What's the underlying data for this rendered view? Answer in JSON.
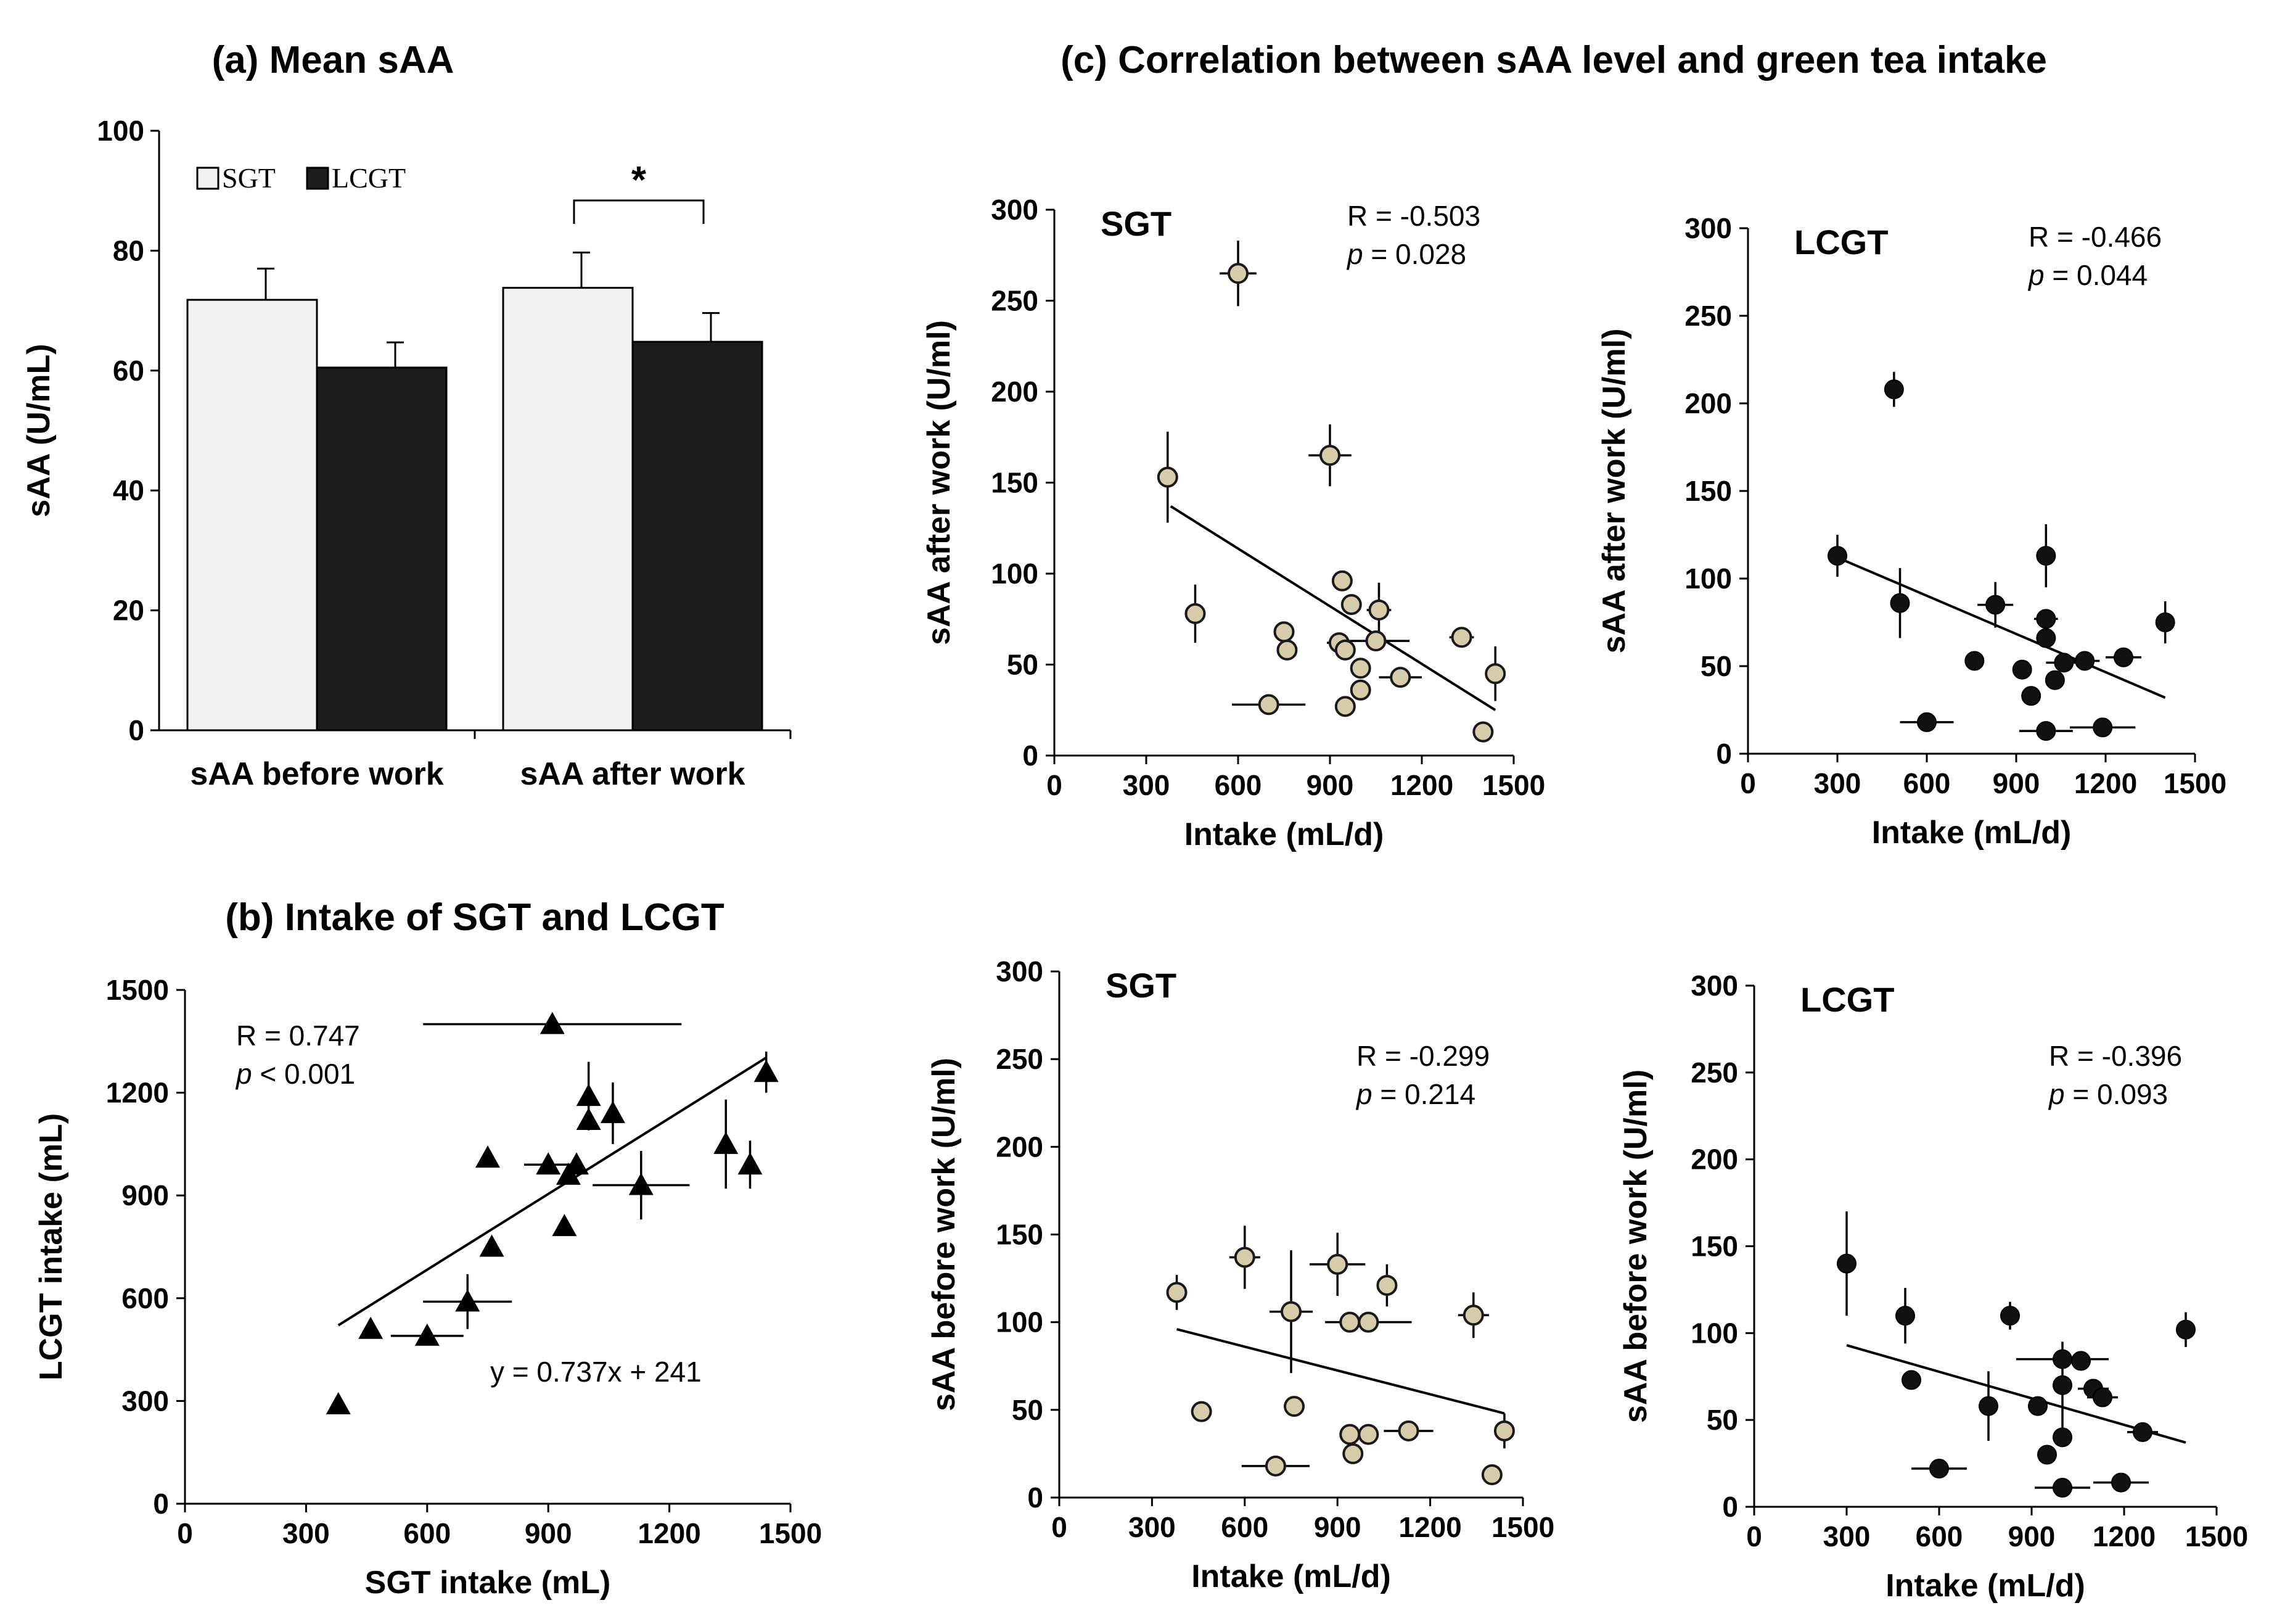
{
  "figure": {
    "titles": {
      "a": "(a) Mean sAA",
      "b": "(b) Intake of SGT and LCGT",
      "c": "(c) Correlation between sAA level and green tea intake"
    }
  },
  "chart_data": [
    {
      "id": "a",
      "type": "bar",
      "title": "(a) Mean sAA",
      "ylabel": "sAA (U/mL)",
      "ylim": [
        0,
        100
      ],
      "yticks": [
        0,
        20,
        40,
        60,
        80,
        100
      ],
      "categories": [
        "sAA before work",
        "sAA after work"
      ],
      "series": [
        {
          "name": "SGT",
          "color": "#f2f2f2",
          "values": [
            71.8,
            73.8
          ],
          "errors": [
            5.2,
            5.9
          ]
        },
        {
          "name": "LCGT",
          "color": "#1c1c1c",
          "values": [
            60.5,
            64.8
          ],
          "errors": [
            4.2,
            4.8
          ]
        }
      ],
      "legend": [
        "SGT",
        "LCGT"
      ],
      "annotation": "*"
    },
    {
      "id": "b",
      "type": "scatter",
      "title": "(b) Intake of SGT and LCGT",
      "xlabel": "SGT intake (mL)",
      "ylabel": "LCGT intake (mL)",
      "xlim": [
        0,
        1500
      ],
      "ylim": [
        0,
        1500
      ],
      "xticks": [
        0,
        300,
        600,
        900,
        1200,
        1500
      ],
      "yticks": [
        0,
        300,
        600,
        900,
        1200,
        1500
      ],
      "marker": "triangle",
      "stats": {
        "r": "R = 0.747",
        "p_label": "p",
        "p_rest": " < 0.001",
        "equation": "y = 0.737x + 241"
      },
      "fit": {
        "slope": 0.737,
        "intercept": 241,
        "x_range": [
          380,
          1440
        ]
      },
      "points": [
        {
          "x": 380,
          "y": 290,
          "ex": 0,
          "ey": 0
        },
        {
          "x": 460,
          "y": 510,
          "ex": 0,
          "ey": 0
        },
        {
          "x": 600,
          "y": 490,
          "ex": 90,
          "ey": 0
        },
        {
          "x": 700,
          "y": 590,
          "ex": 110,
          "ey": 80
        },
        {
          "x": 750,
          "y": 1010,
          "ex": 0,
          "ey": 0
        },
        {
          "x": 760,
          "y": 750,
          "ex": 0,
          "ey": 0
        },
        {
          "x": 910,
          "y": 1400,
          "ex": 320,
          "ey": 0
        },
        {
          "x": 900,
          "y": 990,
          "ex": 60,
          "ey": 0
        },
        {
          "x": 940,
          "y": 810,
          "ex": 0,
          "ey": 0
        },
        {
          "x": 950,
          "y": 960,
          "ex": 0,
          "ey": 0
        },
        {
          "x": 970,
          "y": 990,
          "ex": 0,
          "ey": 0
        },
        {
          "x": 1000,
          "y": 1190,
          "ex": 0,
          "ey": 100
        },
        {
          "x": 1000,
          "y": 1120,
          "ex": 0,
          "ey": 0
        },
        {
          "x": 1060,
          "y": 1140,
          "ex": 0,
          "ey": 90
        },
        {
          "x": 1130,
          "y": 930,
          "ex": 120,
          "ey": 100
        },
        {
          "x": 1340,
          "y": 1050,
          "ex": 0,
          "ey": 130
        },
        {
          "x": 1400,
          "y": 990,
          "ex": 0,
          "ey": 70
        },
        {
          "x": 1440,
          "y": 1260,
          "ex": 0,
          "ey": 60
        }
      ]
    },
    {
      "id": "c1",
      "type": "scatter",
      "subtitle": "SGT",
      "xlabel": "Intake (mL/d)",
      "ylabel": "sAA after work (U/ml)",
      "xlim": [
        0,
        1500
      ],
      "ylim": [
        0,
        300
      ],
      "xticks": [
        0,
        300,
        600,
        900,
        1200,
        1500
      ],
      "yticks": [
        0,
        50,
        100,
        150,
        200,
        250,
        300
      ],
      "marker": "circle-light",
      "stats": {
        "r": "R = -0.503",
        "p_label": "p",
        "p_rest": " = 0.028"
      },
      "fit": {
        "x": [
          380,
          1440
        ],
        "y": [
          137,
          25
        ]
      },
      "points": [
        {
          "x": 600,
          "y": 265,
          "ex": 60,
          "ey": 18
        },
        {
          "x": 370,
          "y": 153,
          "ex": 0,
          "ey": 25
        },
        {
          "x": 900,
          "y": 165,
          "ex": 70,
          "ey": 17
        },
        {
          "x": 460,
          "y": 78,
          "ex": 0,
          "ey": 16
        },
        {
          "x": 750,
          "y": 68,
          "ex": 0,
          "ey": 0
        },
        {
          "x": 760,
          "y": 58,
          "ex": 0,
          "ey": 0
        },
        {
          "x": 700,
          "y": 28,
          "ex": 120,
          "ey": 0
        },
        {
          "x": 940,
          "y": 96,
          "ex": 0,
          "ey": 0
        },
        {
          "x": 970,
          "y": 83,
          "ex": 0,
          "ey": 0
        },
        {
          "x": 1060,
          "y": 80,
          "ex": 40,
          "ey": 15
        },
        {
          "x": 930,
          "y": 62,
          "ex": 40,
          "ey": 0
        },
        {
          "x": 950,
          "y": 58,
          "ex": 0,
          "ey": 0
        },
        {
          "x": 1000,
          "y": 48,
          "ex": 0,
          "ey": 0
        },
        {
          "x": 1000,
          "y": 36,
          "ex": 0,
          "ey": 0
        },
        {
          "x": 950,
          "y": 27,
          "ex": 0,
          "ey": 0
        },
        {
          "x": 1130,
          "y": 43,
          "ex": 70,
          "ey": 0
        },
        {
          "x": 1050,
          "y": 63,
          "ex": 110,
          "ey": 0
        },
        {
          "x": 1330,
          "y": 65,
          "ex": 40,
          "ey": 0
        },
        {
          "x": 1440,
          "y": 45,
          "ex": 0,
          "ey": 15
        },
        {
          "x": 1400,
          "y": 13,
          "ex": 0,
          "ey": 0
        }
      ]
    },
    {
      "id": "c2",
      "type": "scatter",
      "subtitle": "LCGT",
      "xlabel": "Intake (mL/d)",
      "ylabel": "sAA after work (U/ml)",
      "xlim": [
        0,
        1500
      ],
      "ylim": [
        0,
        300
      ],
      "xticks": [
        0,
        300,
        600,
        900,
        1200,
        1500
      ],
      "yticks": [
        0,
        50,
        100,
        150,
        200,
        250,
        300
      ],
      "marker": "circle-dark",
      "stats": {
        "r": "R = -0.466",
        "p_label": "p",
        "p_rest": " = 0.044"
      },
      "fit": {
        "x": [
          300,
          1400
        ],
        "y": [
          112,
          32
        ]
      },
      "points": [
        {
          "x": 490,
          "y": 208,
          "ex": 0,
          "ey": 10
        },
        {
          "x": 300,
          "y": 113,
          "ex": 0,
          "ey": 12
        },
        {
          "x": 510,
          "y": 86,
          "ex": 0,
          "ey": 20
        },
        {
          "x": 600,
          "y": 18,
          "ex": 90,
          "ey": 0
        },
        {
          "x": 760,
          "y": 53,
          "ex": 0,
          "ey": 0
        },
        {
          "x": 830,
          "y": 85,
          "ex": 60,
          "ey": 13
        },
        {
          "x": 920,
          "y": 48,
          "ex": 0,
          "ey": 0
        },
        {
          "x": 950,
          "y": 33,
          "ex": 0,
          "ey": 0
        },
        {
          "x": 1000,
          "y": 113,
          "ex": 0,
          "ey": 18
        },
        {
          "x": 1000,
          "y": 77,
          "ex": 40,
          "ey": 0
        },
        {
          "x": 1000,
          "y": 66,
          "ex": 0,
          "ey": 0
        },
        {
          "x": 1000,
          "y": 13,
          "ex": 90,
          "ey": 0
        },
        {
          "x": 1030,
          "y": 42,
          "ex": 30,
          "ey": 0
        },
        {
          "x": 1060,
          "y": 52,
          "ex": 60,
          "ey": 0
        },
        {
          "x": 1130,
          "y": 53,
          "ex": 50,
          "ey": 0
        },
        {
          "x": 1190,
          "y": 15,
          "ex": 110,
          "ey": 0
        },
        {
          "x": 1260,
          "y": 55,
          "ex": 60,
          "ey": 0
        },
        {
          "x": 1400,
          "y": 75,
          "ex": 0,
          "ey": 12
        }
      ]
    },
    {
      "id": "c3",
      "type": "scatter",
      "subtitle": "SGT",
      "xlabel": "Intake (mL/d)",
      "ylabel": "sAA before work (U/ml)",
      "xlim": [
        0,
        1500
      ],
      "ylim": [
        0,
        300
      ],
      "xticks": [
        0,
        300,
        600,
        900,
        1200,
        1500
      ],
      "yticks": [
        0,
        50,
        100,
        150,
        200,
        250,
        300
      ],
      "marker": "circle-light",
      "stats": {
        "r": "R = -0.299",
        "p_label": "p",
        "p_rest": " = 0.214"
      },
      "fit": {
        "x": [
          380,
          1440
        ],
        "y": [
          96,
          48
        ]
      },
      "points": [
        {
          "x": 380,
          "y": 117,
          "ex": 0,
          "ey": 10
        },
        {
          "x": 600,
          "y": 137,
          "ex": 50,
          "ey": 18
        },
        {
          "x": 460,
          "y": 49,
          "ex": 0,
          "ey": 0
        },
        {
          "x": 700,
          "y": 18,
          "ex": 110,
          "ey": 0
        },
        {
          "x": 750,
          "y": 106,
          "ex": 70,
          "ey": 35
        },
        {
          "x": 760,
          "y": 52,
          "ex": 0,
          "ey": 0
        },
        {
          "x": 900,
          "y": 133,
          "ex": 90,
          "ey": 18
        },
        {
          "x": 940,
          "y": 100,
          "ex": 0,
          "ey": 0
        },
        {
          "x": 1000,
          "y": 100,
          "ex": 140,
          "ey": 0
        },
        {
          "x": 1060,
          "y": 121,
          "ex": 0,
          "ey": 12
        },
        {
          "x": 940,
          "y": 36,
          "ex": 0,
          "ey": 0
        },
        {
          "x": 1000,
          "y": 36,
          "ex": 0,
          "ey": 0
        },
        {
          "x": 950,
          "y": 25,
          "ex": 0,
          "ey": 0
        },
        {
          "x": 1130,
          "y": 38,
          "ex": 80,
          "ey": 0
        },
        {
          "x": 1340,
          "y": 104,
          "ex": 50,
          "ey": 13
        },
        {
          "x": 1440,
          "y": 38,
          "ex": 0,
          "ey": 10
        },
        {
          "x": 1400,
          "y": 13,
          "ex": 0,
          "ey": 0
        }
      ]
    },
    {
      "id": "c4",
      "type": "scatter",
      "subtitle": "LCGT",
      "xlabel": "Intake (mL/d)",
      "ylabel": "sAA before work (U/ml)",
      "xlim": [
        0,
        1500
      ],
      "ylim": [
        0,
        300
      ],
      "xticks": [
        0,
        300,
        600,
        900,
        1200,
        1500
      ],
      "yticks": [
        0,
        50,
        100,
        150,
        200,
        250,
        300
      ],
      "marker": "circle-dark",
      "stats": {
        "r": "R = -0.396",
        "p_label": "p",
        "p_rest": " = 0.093"
      },
      "fit": {
        "x": [
          300,
          1400
        ],
        "y": [
          93,
          37
        ]
      },
      "points": [
        {
          "x": 300,
          "y": 140,
          "ex": 0,
          "ey": 30
        },
        {
          "x": 490,
          "y": 110,
          "ex": 0,
          "ey": 16
        },
        {
          "x": 510,
          "y": 73,
          "ex": 0,
          "ey": 0
        },
        {
          "x": 600,
          "y": 22,
          "ex": 90,
          "ey": 0
        },
        {
          "x": 760,
          "y": 58,
          "ex": 0,
          "ey": 20
        },
        {
          "x": 830,
          "y": 110,
          "ex": 0,
          "ey": 8
        },
        {
          "x": 920,
          "y": 58,
          "ex": 0,
          "ey": 0
        },
        {
          "x": 950,
          "y": 30,
          "ex": 0,
          "ey": 0
        },
        {
          "x": 1000,
          "y": 85,
          "ex": 150,
          "ey": 0
        },
        {
          "x": 1000,
          "y": 70,
          "ex": 0,
          "ey": 25
        },
        {
          "x": 1000,
          "y": 40,
          "ex": 0,
          "ey": 0
        },
        {
          "x": 1000,
          "y": 11,
          "ex": 90,
          "ey": 0
        },
        {
          "x": 1060,
          "y": 84,
          "ex": 0,
          "ey": 0
        },
        {
          "x": 1100,
          "y": 68,
          "ex": 50,
          "ey": 0
        },
        {
          "x": 1130,
          "y": 63,
          "ex": 50,
          "ey": 0
        },
        {
          "x": 1190,
          "y": 14,
          "ex": 90,
          "ey": 0
        },
        {
          "x": 1260,
          "y": 43,
          "ex": 50,
          "ey": 0
        },
        {
          "x": 1400,
          "y": 102,
          "ex": 0,
          "ey": 10
        }
      ]
    }
  ]
}
